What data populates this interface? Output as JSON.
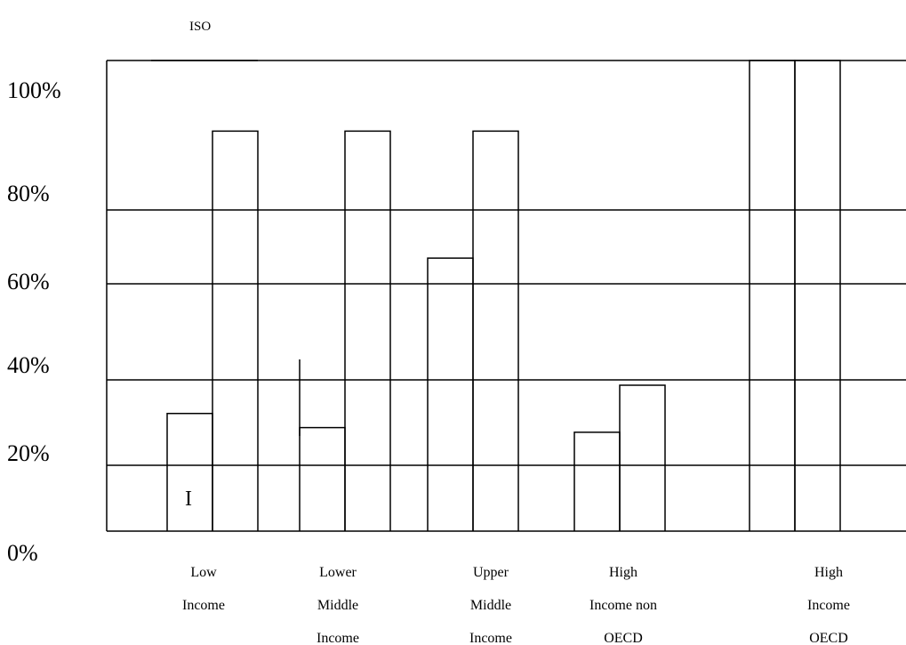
{
  "chart_data": {
    "type": "bar",
    "title": "ISO",
    "categories": [
      [
        "Low",
        "Income"
      ],
      [
        "Lower",
        "Middle",
        "Income"
      ],
      [
        "Upper",
        "Middle",
        "Income"
      ],
      [
        "High",
        "Income non",
        "OECD"
      ],
      [
        "High",
        "Income",
        "OECD"
      ]
    ],
    "y_ticks": [
      "0%",
      "20%",
      "40%",
      "60%",
      "80%",
      "100%"
    ],
    "series": [
      {
        "values": [
          25,
          22,
          58,
          21,
          100
        ]
      },
      {
        "values": [
          85,
          85,
          85,
          31,
          100
        ]
      }
    ],
    "annotations": [
      "I"
    ],
    "ylim": [
      0,
      100
    ],
    "grid": true,
    "legend": "none"
  }
}
